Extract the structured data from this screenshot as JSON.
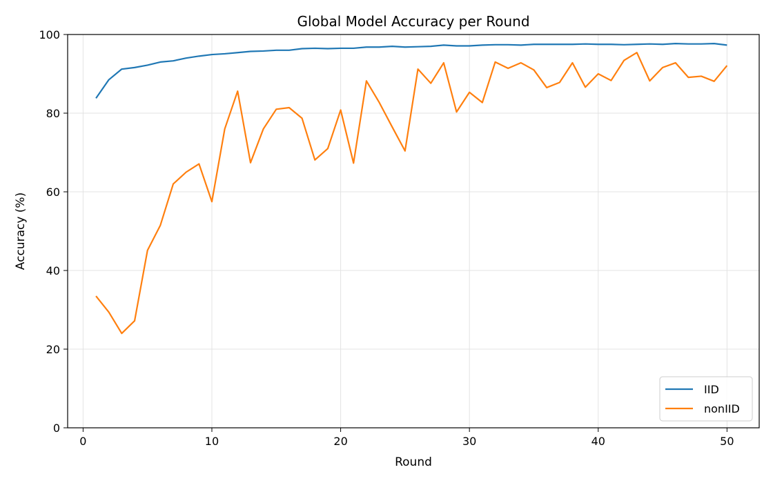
{
  "chart_data": {
    "type": "line",
    "title": "Global Model Accuracy per Round",
    "xlabel": "Round",
    "ylabel": "Accuracy (%)",
    "xlim": [
      -1.2,
      52.5
    ],
    "ylim": [
      0,
      100
    ],
    "x_ticks": [
      0,
      10,
      20,
      30,
      40,
      50
    ],
    "y_ticks": [
      0,
      20,
      40,
      60,
      80,
      100
    ],
    "grid": true,
    "legend_position": "bottom-right",
    "x": [
      1,
      2,
      3,
      4,
      5,
      6,
      7,
      8,
      9,
      10,
      11,
      12,
      13,
      14,
      15,
      16,
      17,
      18,
      19,
      20,
      21,
      22,
      23,
      24,
      25,
      26,
      27,
      28,
      29,
      30,
      31,
      32,
      33,
      34,
      35,
      36,
      37,
      38,
      39,
      40,
      41,
      42,
      43,
      44,
      45,
      46,
      47,
      48,
      49,
      50
    ],
    "series": [
      {
        "name": "IID",
        "color": "#1f77b4",
        "values": [
          83.8,
          88.5,
          91.2,
          91.6,
          92.2,
          93.0,
          93.3,
          94.0,
          94.5,
          94.9,
          95.1,
          95.4,
          95.7,
          95.8,
          96.0,
          96.0,
          96.4,
          96.5,
          96.4,
          96.5,
          96.5,
          96.8,
          96.8,
          97.0,
          96.8,
          96.9,
          97.0,
          97.3,
          97.1,
          97.1,
          97.3,
          97.4,
          97.4,
          97.3,
          97.5,
          97.5,
          97.5,
          97.5,
          97.6,
          97.5,
          97.5,
          97.4,
          97.5,
          97.6,
          97.5,
          97.7,
          97.6,
          97.6,
          97.7,
          97.3
        ]
      },
      {
        "name": "nonIID",
        "color": "#ff7f0e",
        "values": [
          33.5,
          29.4,
          24.0,
          27.2,
          45.1,
          51.5,
          62.0,
          65.0,
          67.1,
          57.5,
          76.0,
          85.6,
          67.4,
          76.0,
          81.0,
          81.4,
          78.7,
          68.1,
          71.0,
          80.8,
          67.3,
          88.2,
          82.7,
          76.5,
          70.4,
          91.2,
          87.6,
          92.8,
          80.3,
          85.3,
          82.7,
          93.0,
          91.4,
          92.8,
          91.0,
          86.5,
          87.8,
          92.8,
          86.6,
          90.0,
          88.3,
          93.4,
          95.4,
          88.2,
          91.6,
          92.8,
          89.1,
          89.4,
          88.1,
          92.1
        ]
      }
    ]
  }
}
